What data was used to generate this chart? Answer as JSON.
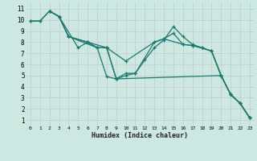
{
  "xlabel": "Humidex (Indice chaleur)",
  "xlim": [
    -0.5,
    23.5
  ],
  "ylim": [
    0.5,
    11.5
  ],
  "xticks": [
    0,
    1,
    2,
    3,
    4,
    5,
    6,
    7,
    8,
    9,
    10,
    11,
    12,
    13,
    14,
    15,
    16,
    17,
    18,
    19,
    20,
    21,
    22,
    23
  ],
  "yticks": [
    1,
    2,
    3,
    4,
    5,
    6,
    7,
    8,
    9,
    10,
    11
  ],
  "bg_color": "#cce8e0",
  "grid_color": "#bbbbbb",
  "line_color": "#1a7a6e",
  "lines": [
    {
      "x": [
        0,
        1,
        2,
        3,
        4,
        6,
        8,
        9,
        10,
        11,
        13,
        14,
        16,
        17,
        19,
        20,
        21,
        22,
        23
      ],
      "y": [
        9.9,
        9.9,
        10.8,
        10.3,
        8.5,
        8.0,
        7.5,
        4.7,
        5.2,
        5.2,
        8.0,
        8.3,
        7.8,
        7.7,
        7.2,
        5.0,
        3.3,
        2.5,
        1.2
      ]
    },
    {
      "x": [
        0,
        1,
        2,
        3,
        5,
        6,
        7,
        8,
        10,
        13,
        14,
        15,
        16,
        17,
        18,
        19,
        20,
        21,
        22,
        23
      ],
      "y": [
        9.9,
        9.9,
        10.8,
        10.3,
        7.5,
        8.0,
        7.5,
        7.5,
        6.3,
        8.0,
        8.3,
        8.8,
        7.8,
        7.7,
        7.5,
        7.2,
        5.0,
        3.3,
        2.5,
        1.2
      ]
    },
    {
      "x": [
        2,
        3,
        4,
        7,
        8,
        9,
        10,
        11,
        12,
        13,
        14,
        15,
        16,
        17,
        18,
        19,
        20,
        21,
        22,
        23
      ],
      "y": [
        10.8,
        10.3,
        8.5,
        7.5,
        4.9,
        4.7,
        5.0,
        5.2,
        6.4,
        7.5,
        8.2,
        9.4,
        8.5,
        7.8,
        7.5,
        7.2,
        5.0,
        3.3,
        2.5,
        1.2
      ]
    },
    {
      "x": [
        2,
        3,
        4,
        6,
        7,
        8,
        9,
        20,
        21,
        22,
        23
      ],
      "y": [
        10.8,
        10.3,
        8.5,
        8.0,
        7.5,
        7.5,
        4.7,
        5.0,
        3.3,
        2.5,
        1.2
      ]
    }
  ]
}
